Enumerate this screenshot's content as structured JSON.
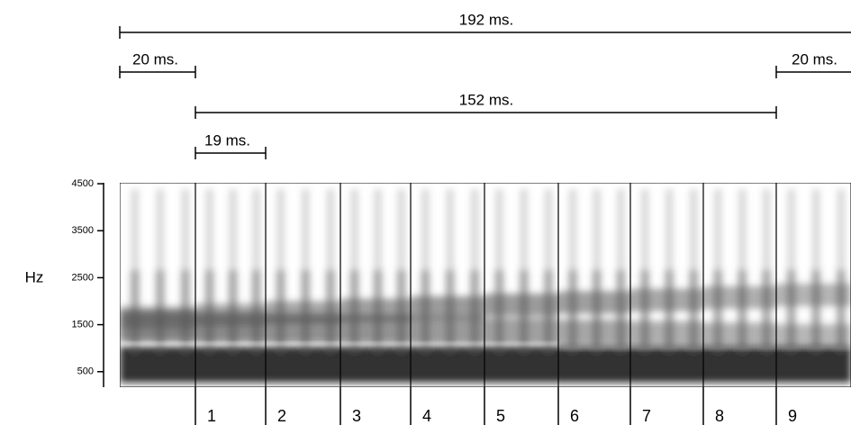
{
  "chart_data": {
    "type": "spectrogram",
    "ylabel": "Hz",
    "ylim": [
      170,
      4520
    ],
    "yticks": [
      500,
      1500,
      2500,
      3500,
      4500
    ],
    "spans": [
      {
        "label": "192 ms."
      },
      {
        "label": "20 ms."
      },
      {
        "label": "20 ms."
      },
      {
        "label": "152 ms."
      },
      {
        "label": "19 ms."
      }
    ],
    "segments": [
      1,
      2,
      3,
      4,
      5,
      6,
      7,
      8,
      9
    ]
  }
}
